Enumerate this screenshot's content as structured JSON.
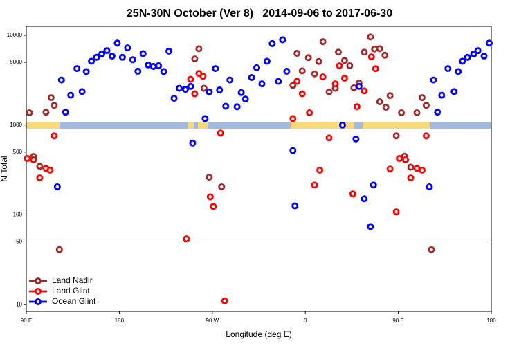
{
  "chart_data": {
    "type": "scatter",
    "title": "25N-30N October (Ver 8)   2014-09-06 to 2017-06-30",
    "xlabel": "Longitude (deg E)",
    "ylabel": "N Total",
    "xlim": [
      90,
      540
    ],
    "xticks": [
      {
        "value": 90,
        "label": "90 E"
      },
      180,
      {
        "value": 270,
        "label": "90 W"
      },
      {
        "value": 360,
        "label": "0"
      },
      {
        "value": 450,
        "label": "90 E"
      },
      {
        "value": 540,
        "label": "180"
      }
    ],
    "ylim": [
      8.4,
      12600
    ],
    "log_y": true,
    "yticks": [
      10,
      50,
      100,
      500,
      1000,
      5000,
      10000
    ],
    "hline": 50,
    "legend": "lower left",
    "series": [
      {
        "name": "Land Nadir",
        "color": "#a52a2a",
        "x": [
          93,
          97,
          103,
          109,
          114,
          117,
          122,
          253,
          257,
          262,
          267,
          279,
          348,
          352,
          357,
          363,
          369,
          373,
          377,
          383,
          389,
          392,
          398,
          403,
          407,
          412,
          417,
          423,
          427,
          432,
          437,
          432,
          438,
          442,
          448,
          453,
          456,
          462,
          468,
          473,
          477,
          482
        ],
        "values": [
          1370,
          447,
          347,
          1390,
          2020,
          1660,
          41,
          5460,
          7100,
          2570,
          263,
          205,
          2770,
          6300,
          4020,
          5640,
          3720,
          5120,
          8500,
          2340,
          2570,
          6500,
          5260,
          4580,
          2600,
          2940,
          6500,
          9600,
          7050,
          7100,
          6000,
          1820,
          1580,
          2130,
          760,
          1370,
          450,
          340,
          1370,
          2020,
          1660,
          41
        ]
      },
      {
        "name": "Land Glint",
        "color": "#ff0000",
        "x": [
          91,
          97,
          103,
          109,
          113,
          117,
          245,
          249,
          253,
          257,
          261,
          268,
          271,
          278,
          282,
          348,
          352,
          357,
          364,
          369,
          374,
          377,
          383,
          389,
          393,
          398,
          406,
          410,
          417,
          424,
          428,
          442,
          448,
          451,
          457,
          462,
          468,
          473,
          477
        ],
        "values": [
          425,
          410,
          258,
          330,
          315,
          760,
          54,
          3240,
          2230,
          3760,
          3500,
          159,
          124,
          815,
          11,
          1180,
          3070,
          2230,
          1370,
          215,
          315,
          3440,
          720,
          2880,
          4580,
          3330,
          171,
          1600,
          2400,
          5760,
          4250,
          324,
          108,
          425,
          410,
          258,
          330,
          315,
          760
        ]
      },
      {
        "name": "Ocean Glint",
        "color": "#0000ff",
        "x": [
          120,
          124,
          128,
          133,
          139,
          144,
          148,
          153,
          158,
          163,
          168,
          173,
          178,
          183,
          188,
          193,
          198,
          203,
          208,
          213,
          218,
          223,
          228,
          233,
          238,
          244,
          249,
          251,
          263,
          267,
          273,
          277,
          283,
          287,
          294,
          298,
          302,
          308,
          313,
          318,
          323,
          328,
          334,
          338,
          342,
          348,
          350,
          396,
          409,
          412,
          417,
          423,
          426,
          480,
          484,
          488,
          492,
          498,
          504,
          508,
          512,
          517,
          523,
          527,
          533,
          538
        ],
        "values": [
          205,
          3180,
          1390,
          2150,
          4260,
          2360,
          3950,
          5150,
          5690,
          6200,
          6760,
          5870,
          8200,
          5690,
          7250,
          5350,
          3980,
          6250,
          4670,
          4500,
          4580,
          3950,
          6660,
          1990,
          2570,
          2500,
          2700,
          630,
          1180,
          2340,
          4260,
          2460,
          1620,
          3180,
          1600,
          2300,
          1950,
          3390,
          4350,
          2880,
          5150,
          8100,
          3070,
          8940,
          3980,
          520,
          126,
          1000,
          700,
          2700,
          151,
          74,
          215,
          205,
          3180,
          1390,
          2150,
          4260,
          2360,
          3950,
          5150,
          5690,
          6200,
          6760,
          5870,
          8200
        ]
      }
    ]
  }
}
